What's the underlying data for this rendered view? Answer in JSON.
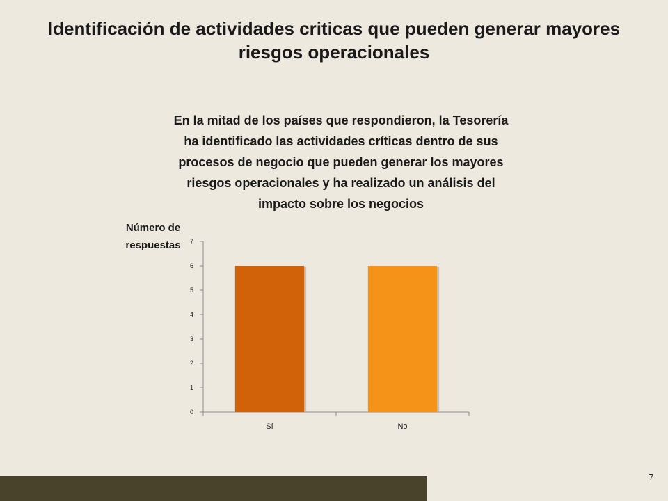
{
  "slide": {
    "title_lines": [
      "Identificación de actividades criticas que pueden generar mayores",
      "riesgos operacionales"
    ],
    "subtitle_lines": [
      "En la mitad de los países que respondieron, la Tesorería",
      "ha identificado las actividades críticas dentro de sus",
      "procesos de negocio que pueden generar los mayores",
      "riesgos operacionales y ha realizado un análisis del",
      "impacto sobre los negocios"
    ],
    "page_number": "7"
  },
  "chart_data": {
    "type": "bar",
    "ylabel_lines": [
      "Número de",
      "respuestas"
    ],
    "categories": [
      "Sí",
      "No"
    ],
    "values": [
      6,
      6
    ],
    "bar_colors": [
      "#d2620a",
      "#f59319"
    ],
    "ylim": [
      0,
      7
    ],
    "yticks": [
      "0",
      "1",
      "2",
      "3",
      "4",
      "5",
      "6",
      "7"
    ],
    "grid": false,
    "legend": "none"
  },
  "colors": {
    "background": "#ede9df",
    "footer_bar": "#4a432c"
  }
}
